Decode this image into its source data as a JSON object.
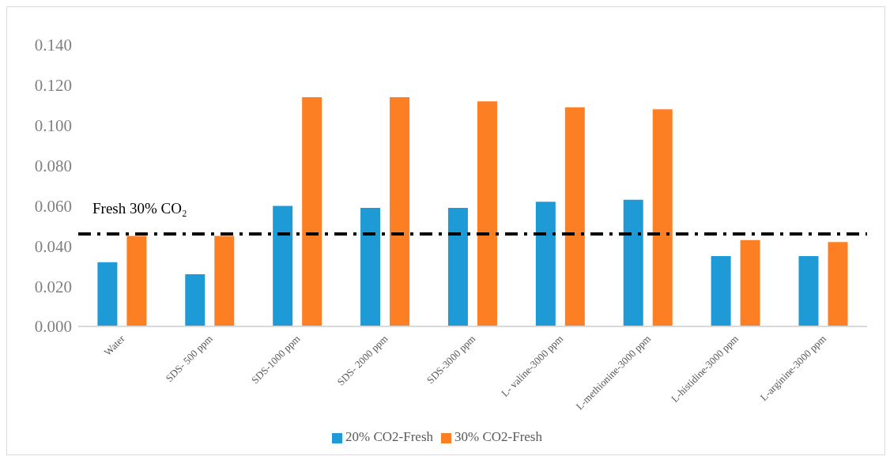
{
  "chart_data": {
    "type": "bar",
    "categories": [
      "Water",
      "SDS- 500 ppm",
      "SDS-1000 ppm",
      "SDS- 2000 ppm",
      "SDS-3000 ppm",
      "L- valine-3000 ppm",
      "L-methionine-3000 ppm",
      "L-histidine-3000 ppm",
      "L-arginine-3000 ppm"
    ],
    "series": [
      {
        "name": "20% CO2-Fresh",
        "color": "#1e9bd7",
        "values": [
          0.032,
          0.026,
          0.06,
          0.059,
          0.059,
          0.062,
          0.063,
          0.035,
          0.035
        ]
      },
      {
        "name": "30% CO2-Fresh",
        "color": "#fd7f23",
        "values": [
          0.045,
          0.045,
          0.114,
          0.114,
          0.112,
          0.109,
          0.108,
          0.043,
          0.042
        ]
      }
    ],
    "ylim": [
      0,
      0.14
    ],
    "yticks": [
      {
        "value": 0,
        "label": "0.000"
      },
      {
        "value": 0.02,
        "label": "0.020"
      },
      {
        "value": 0.04,
        "label": "0.040"
      },
      {
        "value": 0.06,
        "label": "0.060"
      },
      {
        "value": 0.08,
        "label": "0.080"
      },
      {
        "value": 0.1,
        "label": "0.100"
      },
      {
        "value": 0.12,
        "label": "0.120"
      },
      {
        "value": 0.14,
        "label": "0.140"
      }
    ],
    "grid": false,
    "legend": "bottom",
    "ref_lines": [
      {
        "axis": "y",
        "value": 0.046,
        "label": "Fresh 30% CO₂",
        "color": "#000000",
        "line_style": "dashdot"
      }
    ]
  }
}
